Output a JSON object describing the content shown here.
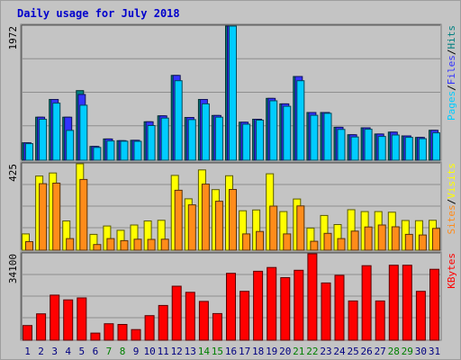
{
  "chart_data": {
    "type": "bar",
    "title": "Daily usage for July 2018",
    "categories": [
      "1",
      "2",
      "3",
      "4",
      "5",
      "6",
      "7",
      "8",
      "9",
      "10",
      "11",
      "12",
      "13",
      "14",
      "15",
      "16",
      "17",
      "18",
      "19",
      "20",
      "21",
      "22",
      "23",
      "24",
      "25",
      "26",
      "27",
      "28",
      "29",
      "30",
      "31"
    ],
    "weekend_days": [
      "7",
      "8",
      "14",
      "15",
      "21",
      "22",
      "28",
      "29"
    ],
    "panels": [
      {
        "name": "hits-files-pages",
        "max_label": "1972",
        "ylim": [
          0,
          1972
        ],
        "series": [
          {
            "name": "Pages",
            "color": "#00ccff",
            "values": [
              243,
              602,
              839,
              438,
              808,
              188,
              283,
              279,
              278,
              509,
              619,
              1169,
              597,
              829,
              632,
              1972,
              530,
              589,
              873,
              793,
              1169,
              660,
              690,
              452,
              341,
              455,
              350,
              371,
              336,
              316,
              403
            ]
          },
          {
            "name": "Files",
            "color": "#3333ff",
            "values": [
              256,
              633,
              893,
              632,
              966,
              202,
              312,
              287,
              292,
              565,
              652,
              1247,
              628,
              893,
              658,
              1972,
              559,
              602,
              909,
              829,
              1231,
              702,
              702,
              485,
              374,
              477,
              385,
              413,
              357,
              335,
              440
            ]
          },
          {
            "name": "Hits",
            "color": "#008080",
            "values": [
              256,
              633,
              893,
              632,
              1023,
              202,
              312,
              287,
              292,
              565,
              652,
              1247,
              628,
              893,
              658,
              1972,
              559,
              602,
              909,
              829,
              1231,
              702,
              702,
              485,
              374,
              477,
              385,
              413,
              357,
              335,
              440
            ]
          }
        ]
      },
      {
        "name": "visits-sites",
        "max_label": "425",
        "ylim": [
          0,
          425
        ],
        "series": [
          {
            "name": "Sites",
            "color": "#ff8c1a",
            "values": [
              42,
              327,
              330,
              57,
              348,
              28,
              57,
              47,
              54,
              53,
              54,
              295,
              223,
              325,
              241,
              299,
              80,
              92,
              217,
              80,
              218,
              44,
              83,
              57,
              94,
              114,
              124,
              115,
              78,
              75,
              107
            ]
          },
          {
            "name": "Visits",
            "color": "#ffff00",
            "values": [
              80,
              365,
              380,
              144,
              425,
              78,
              119,
              98,
              124,
              144,
              147,
              368,
              253,
              395,
              298,
              366,
              194,
              198,
              376,
              190,
              252,
              109,
              171,
              126,
              199,
              190,
              190,
              187,
              146,
              145,
              147
            ]
          }
        ]
      },
      {
        "name": "kbytes",
        "max_label": "34100",
        "ylim": [
          0,
          34100
        ],
        "series": [
          {
            "name": "KBytes",
            "color": "#ff0000",
            "values": [
              5800,
              10400,
              17800,
              15900,
              16700,
              2800,
              6500,
              6200,
              4200,
              9700,
              13700,
              21300,
              18900,
              15300,
              10500,
              26400,
              19300,
              27200,
              28700,
              24700,
              27600,
              34100,
              22600,
              25600,
              15500,
              29400,
              15500,
              29600,
              29600,
              19300,
              28000
            ]
          }
        ]
      }
    ],
    "legends": {
      "hits-files-pages": [
        {
          "text": "Pages",
          "color": "#00ccff"
        },
        {
          "text": "/",
          "color": "#000000"
        },
        {
          "text": "Files",
          "color": "#3333ff"
        },
        {
          "text": "/",
          "color": "#000000"
        },
        {
          "text": "Hits",
          "color": "#008080"
        }
      ],
      "visits-sites": [
        {
          "text": "Sites",
          "color": "#ff8c1a"
        },
        {
          "text": "/",
          "color": "#000000"
        },
        {
          "text": "Visits",
          "color": "#ffff00"
        }
      ],
      "kbytes": [
        {
          "text": "KBytes",
          "color": "#ff0000"
        }
      ]
    },
    "colors": {
      "background": "#c4c4c4",
      "title": "#0000cc",
      "weekday_label": "#000080",
      "weekend_label": "#008000"
    }
  }
}
